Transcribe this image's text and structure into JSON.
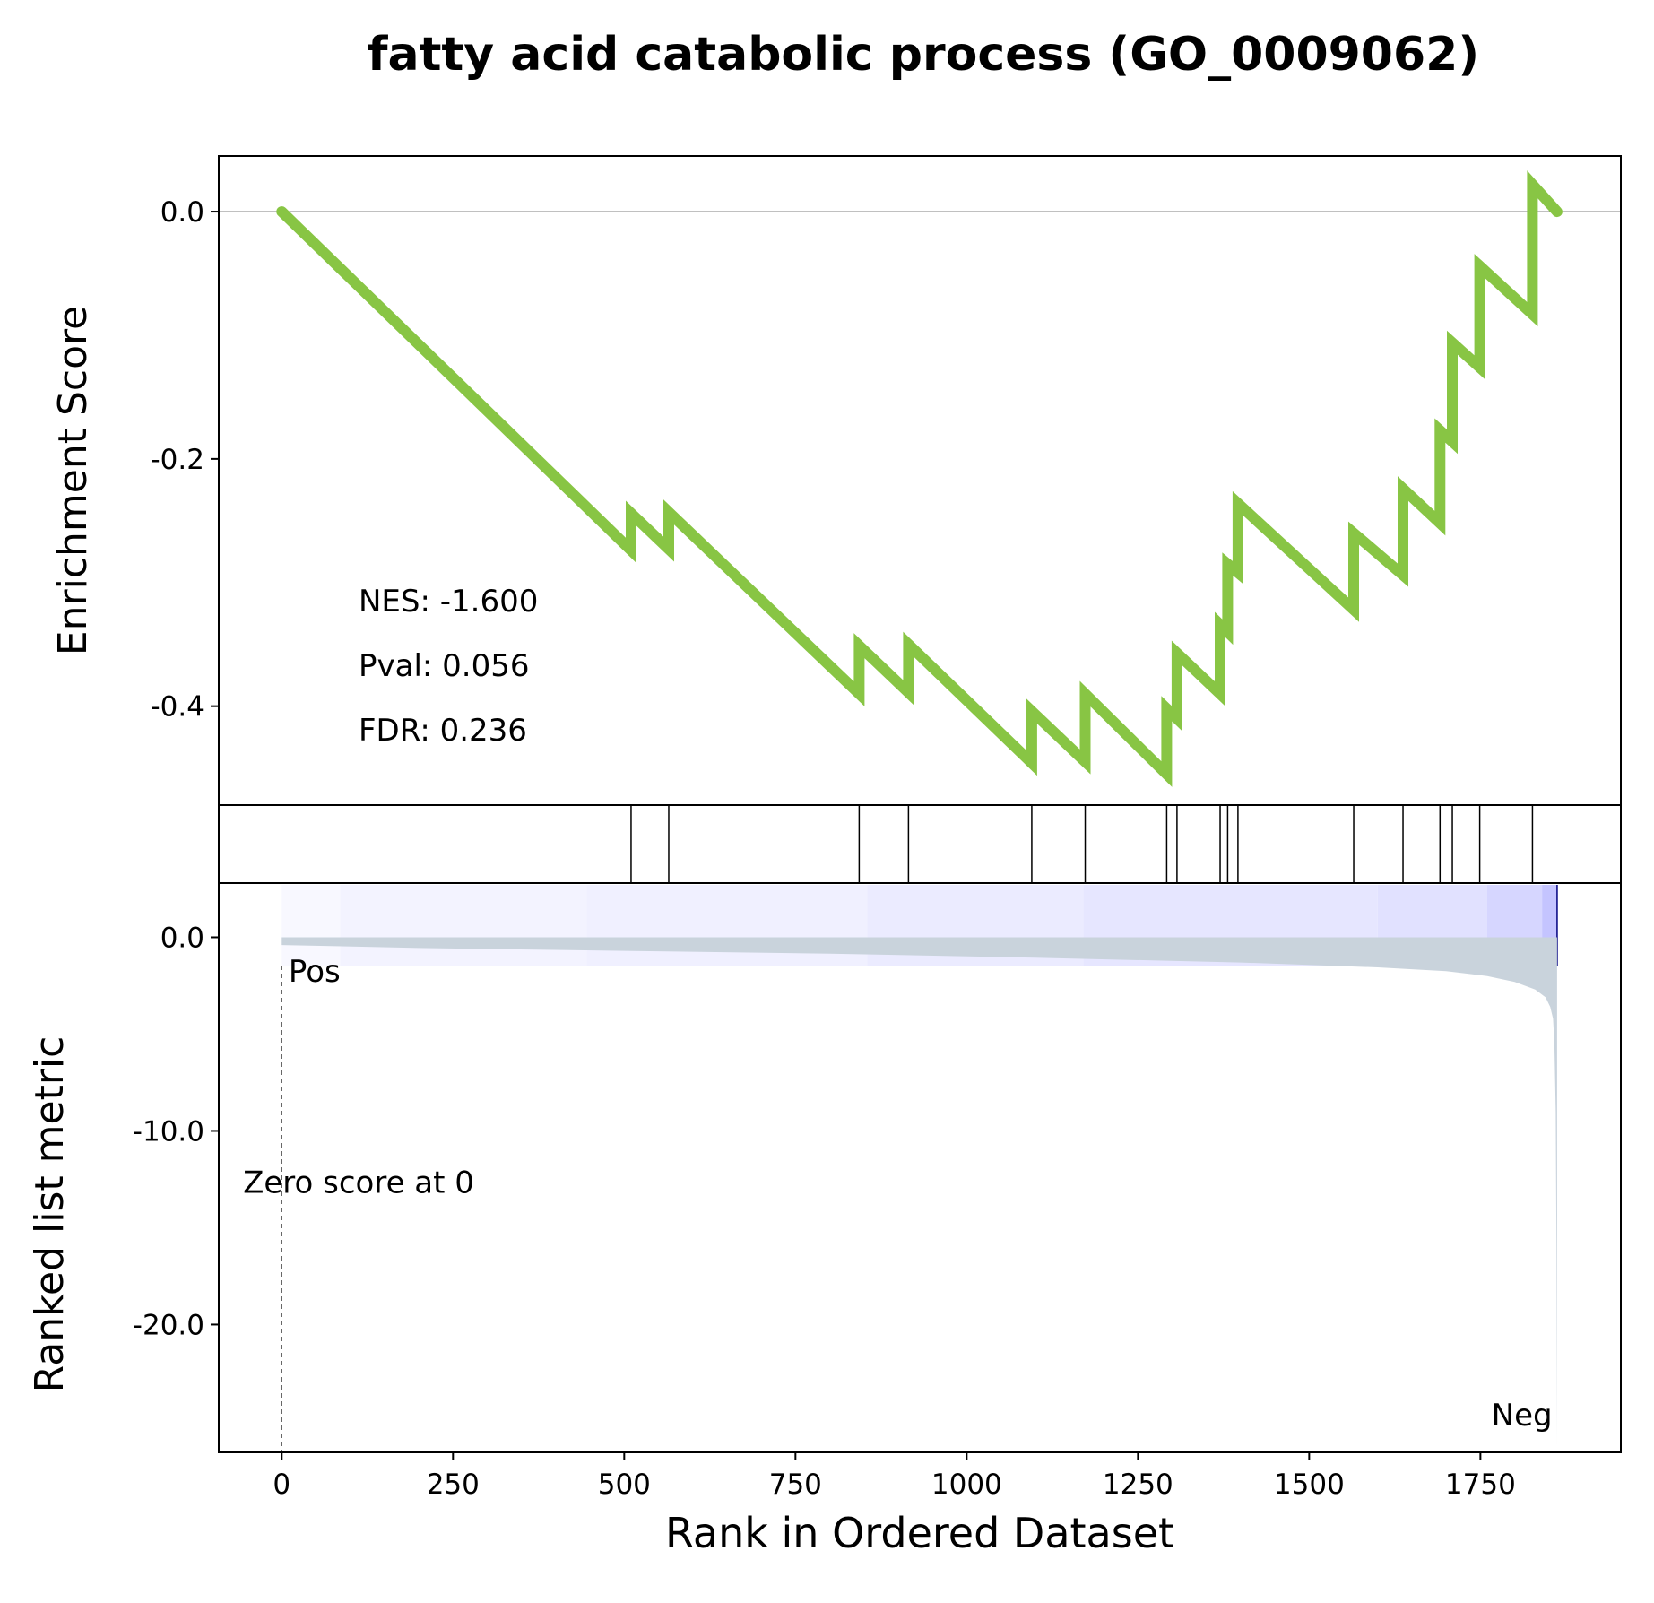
{
  "colors": {
    "es_line": "#88c544",
    "hit_line": "#000000",
    "metric_fill": "#c9d3dc",
    "pos_label": "#ff0000",
    "neg_label": "#0000ff",
    "heat_light": "#f8f8ff",
    "heat_dark": "#c4c4ff"
  },
  "chart_data": {
    "type": "line",
    "title": "fatty acid catabolic process (GO_0009062)",
    "xlabel": "Rank in Ordered Dataset",
    "xlim": [
      -92,
      1955
    ],
    "x_ticks": [
      0,
      250,
      500,
      750,
      1000,
      1250,
      1500,
      1750
    ],
    "x_tick_labels": [
      "0",
      "250",
      "500",
      "750",
      "1000",
      "1250",
      "1500",
      "1750"
    ],
    "enrichment": {
      "ylabel": "Enrichment Score",
      "ylim": [
        -0.48,
        0.045
      ],
      "y_ticks": [
        0.0,
        -0.2,
        -0.4
      ],
      "y_tick_labels": [
        "0.0",
        "-0.2",
        "-0.4"
      ],
      "zero_line": true,
      "x": [
        0,
        510,
        510,
        565,
        565,
        843,
        843,
        915,
        915,
        1095,
        1095,
        1173,
        1173,
        1292,
        1292,
        1307,
        1307,
        1370,
        1370,
        1381,
        1381,
        1396,
        1396,
        1565,
        1565,
        1637,
        1637,
        1691,
        1691,
        1709,
        1709,
        1749,
        1749,
        1826,
        1826,
        1862
      ],
      "y": [
        0.0,
        -0.274,
        -0.244,
        -0.273,
        -0.243,
        -0.39,
        -0.351,
        -0.389,
        -0.35,
        -0.446,
        -0.404,
        -0.445,
        -0.39,
        -0.455,
        -0.402,
        -0.41,
        -0.357,
        -0.39,
        -0.334,
        -0.34,
        -0.285,
        -0.292,
        -0.236,
        -0.322,
        -0.26,
        -0.294,
        -0.224,
        -0.252,
        -0.177,
        -0.186,
        -0.106,
        -0.126,
        -0.044,
        -0.083,
        0.022,
        0.0
      ],
      "annotations": [
        "NES: -1.600",
        "Pval: 0.056",
        "FDR: 0.236"
      ]
    },
    "hits": [
      510,
      565,
      843,
      915,
      1095,
      1173,
      1292,
      1307,
      1370,
      1381,
      1396,
      1565,
      1637,
      1691,
      1709,
      1749,
      1826
    ],
    "heatmap": {
      "x_start": 0,
      "x_end": 1862,
      "segments_x": [
        0,
        85,
        445,
        855,
        1170,
        1600,
        1760,
        1840
      ],
      "segments_level": [
        0.0,
        0.1,
        0.15,
        0.25,
        0.35,
        0.45,
        0.65,
        1.0
      ]
    },
    "metric": {
      "ylabel": "Ranked list metric",
      "ylim": [
        -26.6,
        2.8
      ],
      "y_ticks": [
        0.0,
        -10.0,
        -20.0
      ],
      "y_tick_labels": [
        "0.0",
        "-10.0",
        "-20.0"
      ],
      "x": [
        0,
        200,
        500,
        800,
        1100,
        1400,
        1600,
        1700,
        1760,
        1800,
        1830,
        1845,
        1852,
        1856,
        1858,
        1860,
        1861,
        1862
      ],
      "y": [
        -0.4,
        -0.55,
        -0.7,
        -0.85,
        -1.05,
        -1.3,
        -1.55,
        -1.75,
        -2.0,
        -2.3,
        -2.7,
        -3.1,
        -3.6,
        -4.2,
        -5.5,
        -9.0,
        -16.0,
        -26.3
      ],
      "pos_label": "Pos",
      "neg_label": "Neg",
      "zero_cross_label": "Zero score at 0",
      "zero_cross_x": 0
    }
  }
}
